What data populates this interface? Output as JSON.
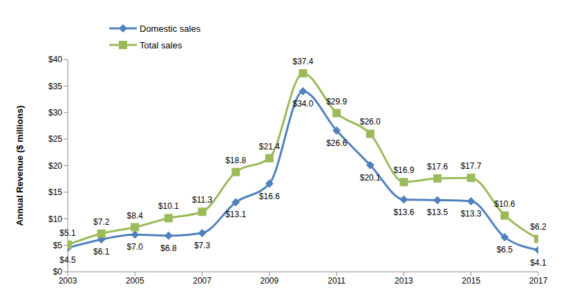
{
  "chart_data": {
    "type": "line",
    "y_label": "Annual Revenue ($ millions)",
    "x": [
      2003,
      2004,
      2005,
      2006,
      2007,
      2008,
      2009,
      2010,
      2011,
      2012,
      2013,
      2014,
      2015,
      2016,
      2017
    ],
    "xlim": [
      2003,
      2017
    ],
    "xticks": [
      2003,
      2005,
      2007,
      2009,
      2011,
      2013,
      2015,
      2017
    ],
    "ylim": [
      0,
      40
    ],
    "yticks": [
      {
        "value": 0,
        "label": "$0"
      },
      {
        "value": 5,
        "label": "$5"
      },
      {
        "value": 10,
        "label": "$10"
      },
      {
        "value": 15,
        "label": "$15"
      },
      {
        "value": 20,
        "label": "$20"
      },
      {
        "value": 25,
        "label": "$25"
      },
      {
        "value": 30,
        "label": "$30"
      },
      {
        "value": 35,
        "label": "$35"
      },
      {
        "value": 40,
        "label": "$40"
      }
    ],
    "grid": false,
    "legend": "top-left",
    "data_labels": true,
    "series": [
      {
        "name": "Domestic sales",
        "color": "#4f81bd",
        "marker": "diamond",
        "line_style": "smooth",
        "values": [
          4.5,
          6.1,
          7.0,
          6.8,
          7.3,
          13.1,
          16.6,
          34.0,
          26.6,
          20.1,
          13.6,
          13.5,
          13.3,
          6.5,
          4.1
        ],
        "value_labels": [
          "$4.5",
          "$6.1",
          "$7.0",
          "$6.8",
          "$7.3",
          "$13.1",
          "$16.6",
          "$34.0",
          "$26.6",
          "$20.1",
          "$13.6",
          "$13.5",
          "$13.3",
          "$6.5",
          "$4.1"
        ]
      },
      {
        "name": "Total sales",
        "color": "#9bbb59",
        "marker": "square",
        "line_style": "smooth",
        "values": [
          5.1,
          7.2,
          8.4,
          10.1,
          11.3,
          18.8,
          21.4,
          37.4,
          29.9,
          26.0,
          16.9,
          17.6,
          17.7,
          10.6,
          6.2
        ],
        "value_labels": [
          "$5.1",
          "$7.2",
          "$8.4",
          "$10.1",
          "$11.3",
          "$18.8",
          "$21.4",
          "$37.4",
          "$29.9",
          "$26.0",
          "$16.9",
          "$17.6",
          "$17.7",
          "$10.6",
          "$6.2"
        ]
      }
    ]
  }
}
